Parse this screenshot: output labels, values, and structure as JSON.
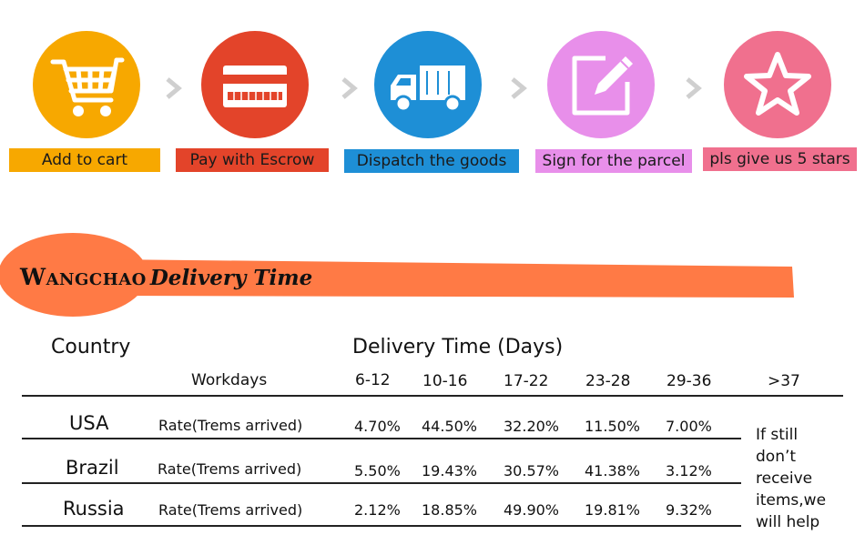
{
  "steps": [
    {
      "label": "Add to cart",
      "icon": "shopping-cart-icon",
      "circle_color": "#F7A800",
      "label_bg": "#F7A800"
    },
    {
      "label": "Pay with Escrow",
      "icon": "credit-card-icon",
      "circle_color": "#E3442A",
      "label_bg": "#E3442A"
    },
    {
      "label": "Dispatch the goods",
      "icon": "delivery-truck-icon",
      "circle_color": "#1E8FD6",
      "label_bg": "#1E8FD6"
    },
    {
      "label": "Sign for the parcel",
      "icon": "edit-pencil-icon",
      "circle_color": "#E88FEA",
      "label_bg": "#E88FEA"
    },
    {
      "label": "pls give us 5 stars",
      "icon": "star-icon",
      "circle_color": "#F0708E",
      "label_bg": "#F0708E"
    }
  ],
  "banner": {
    "brand": "Wangchao",
    "tagline": "Delivery Time",
    "color": "#FF7A45"
  },
  "table": {
    "country_header": "Country",
    "delivery_header": "Delivery Time (Days)",
    "workdays_label": "Workdays",
    "columns": [
      "6-12",
      "10-16",
      "17-22",
      "23-28",
      "29-36",
      ">37"
    ],
    "rows": [
      {
        "country": "USA",
        "rate_label": "Rate(Trems arrived)",
        "values": [
          "4.70%",
          "44.50%",
          "32.20%",
          "11.50%",
          "7.00%"
        ]
      },
      {
        "country": "Brazil",
        "rate_label": "Rate(Trems arrived)",
        "values": [
          "5.50%",
          "19.43%",
          "30.57%",
          "41.38%",
          "3.12%"
        ]
      },
      {
        "country": "Russia",
        "rate_label": "Rate(Trems arrived)",
        "values": [
          "2.12%",
          "18.85%",
          "49.90%",
          "19.81%",
          "9.32%"
        ]
      }
    ],
    "note_lines": [
      "If still",
      "don’t",
      "receive",
      "items,we",
      "will help"
    ]
  }
}
